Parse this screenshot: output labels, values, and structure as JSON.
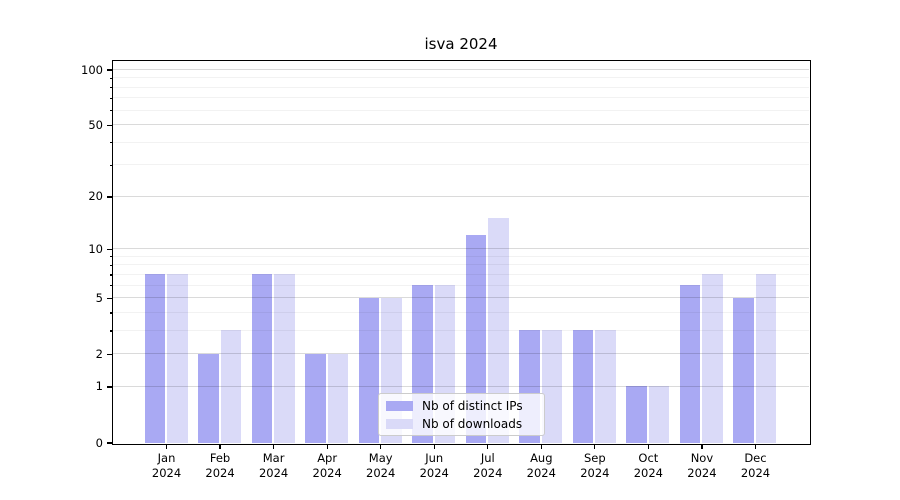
{
  "title": "isva 2024",
  "chart_data": {
    "type": "bar",
    "title": "isva 2024",
    "xlabel": "",
    "ylabel": "",
    "categories": [
      "Jan 2024",
      "Feb 2024",
      "Mar 2024",
      "Apr 2024",
      "May 2024",
      "Jun 2024",
      "Jul 2024",
      "Aug 2024",
      "Sep 2024",
      "Oct 2024",
      "Nov 2024",
      "Dec 2024"
    ],
    "series": [
      {
        "name": "Nb of distinct IPs",
        "color": "#a9a9f3",
        "values": [
          7,
          2,
          7,
          2,
          5,
          6,
          12,
          3,
          3,
          1,
          6,
          5
        ]
      },
      {
        "name": "Nb of downloads",
        "color": "#dadaf8",
        "values": [
          7,
          3,
          7,
          2,
          5,
          6,
          15,
          3,
          3,
          1,
          7,
          7
        ]
      }
    ],
    "yscale": "log1p",
    "ylim": [
      0,
      113
    ],
    "y_ticks": [
      0,
      1,
      2,
      5,
      10,
      20,
      50,
      100
    ],
    "y_minor_ticks": [
      3,
      4,
      6,
      7,
      8,
      9,
      30,
      40,
      60,
      70,
      80,
      90
    ],
    "grid": "on",
    "legend_position": "lower center"
  },
  "legend": {
    "items": [
      {
        "label": "Nb of distinct IPs",
        "color": "#a9a9f3"
      },
      {
        "label": "Nb of downloads",
        "color": "#dadaf8"
      }
    ]
  }
}
